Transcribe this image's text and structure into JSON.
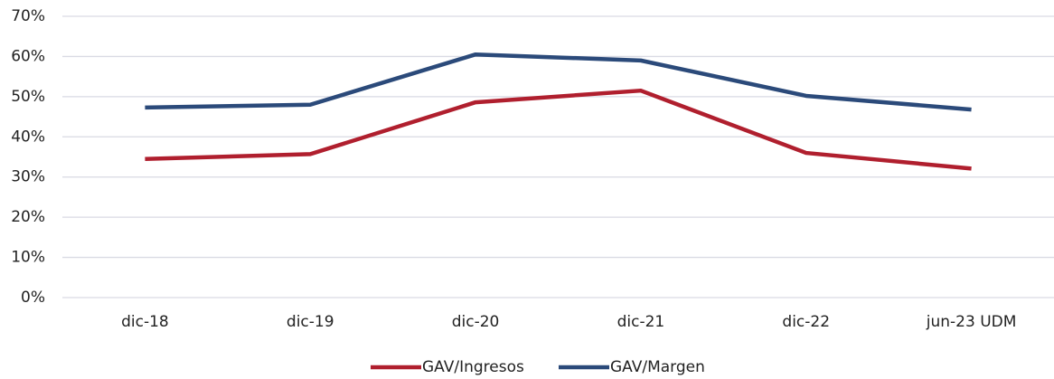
{
  "chart_data": {
    "type": "line",
    "categories": [
      "dic-18",
      "dic-19",
      "dic-20",
      "dic-21",
      "dic-22",
      "jun-23 UDM"
    ],
    "series": [
      {
        "name": "GAV/Ingresos",
        "color": "#b01f2e",
        "values": [
          34.5,
          35.7,
          48.6,
          51.5,
          36.0,
          32.1
        ]
      },
      {
        "name": "GAV/Margen",
        "color": "#2b4a7a",
        "values": [
          47.3,
          48.0,
          60.5,
          59.0,
          50.2,
          46.8
        ]
      }
    ],
    "ylim": [
      0,
      70
    ],
    "yticks": [
      {
        "value": 0,
        "label": "0%"
      },
      {
        "value": 10,
        "label": "10%"
      },
      {
        "value": 20,
        "label": "20%"
      },
      {
        "value": 30,
        "label": "30%"
      },
      {
        "value": 40,
        "label": "40%"
      },
      {
        "value": 50,
        "label": "50%"
      },
      {
        "value": 60,
        "label": "60%"
      },
      {
        "value": 70,
        "label": "70%"
      }
    ],
    "grid": true,
    "legend": "bottom"
  }
}
